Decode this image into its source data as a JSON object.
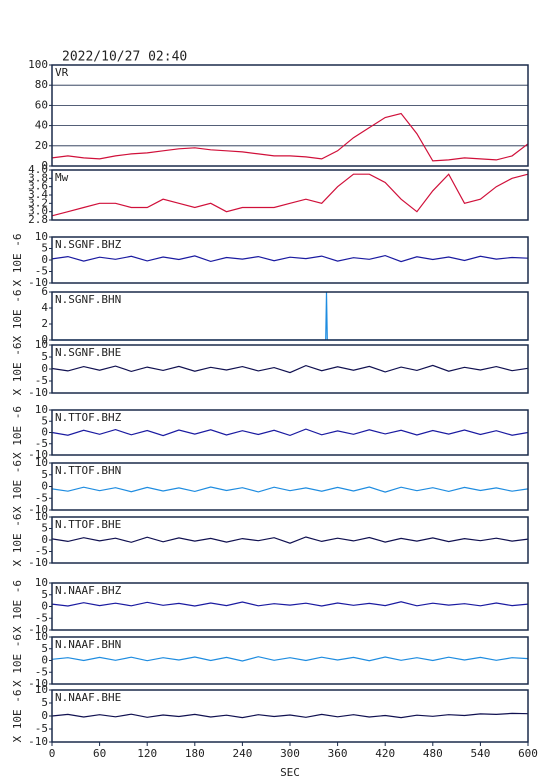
{
  "chart_data": [
    {
      "type": "line",
      "title": "2022/10/27 02:40",
      "label": "VR",
      "color": "#d0103a",
      "grid": true,
      "xlim": [
        0,
        600
      ],
      "ylim": [
        0,
        100
      ],
      "yticks": [
        0,
        20,
        40,
        60,
        80,
        100
      ],
      "x": [
        0,
        20,
        40,
        60,
        80,
        100,
        120,
        140,
        160,
        180,
        200,
        220,
        240,
        260,
        280,
        300,
        320,
        340,
        360,
        380,
        400,
        420,
        440,
        460,
        480,
        500,
        520,
        540,
        560,
        580,
        600
      ],
      "values": [
        8,
        10,
        8,
        7,
        10,
        12,
        13,
        15,
        17,
        18,
        16,
        15,
        14,
        12,
        10,
        10,
        9,
        7,
        15,
        28,
        38,
        48,
        52,
        32,
        5,
        6,
        8,
        7,
        6,
        10,
        22
      ]
    },
    {
      "type": "line",
      "label": "Mw",
      "color": "#d0103a",
      "grid": false,
      "xlim": [
        0,
        600
      ],
      "ylim": [
        2.8,
        4.0
      ],
      "yticks": [
        {
          "value": 2.8,
          "label": "2.8"
        },
        {
          "value": 3.0,
          "label": "3.0"
        },
        {
          "value": 3.2,
          "label": "3.2"
        },
        {
          "value": 3.4,
          "label": "3.4"
        },
        {
          "value": 3.6,
          "label": "3.6"
        },
        {
          "value": 3.8,
          "label": "3.8"
        },
        {
          "value": 4.0,
          "label": "4.0"
        }
      ],
      "x": [
        0,
        20,
        40,
        60,
        80,
        100,
        120,
        140,
        160,
        180,
        200,
        220,
        240,
        260,
        280,
        300,
        320,
        340,
        360,
        380,
        400,
        420,
        440,
        460,
        480,
        500,
        520,
        540,
        560,
        580,
        600
      ],
      "values": [
        2.9,
        3.0,
        3.1,
        3.2,
        3.2,
        3.1,
        3.1,
        3.3,
        3.2,
        3.1,
        3.2,
        3.0,
        3.1,
        3.1,
        3.1,
        3.2,
        3.3,
        3.2,
        3.6,
        3.9,
        3.9,
        3.7,
        3.3,
        3.0,
        3.5,
        3.9,
        3.2,
        3.3,
        3.6,
        3.8,
        3.9
      ]
    },
    {
      "type": "line",
      "label": "N.SGNF.BHZ",
      "ylabel": "X 10E -6",
      "color": "#1a1aa0",
      "grid": false,
      "xlim": [
        0,
        600
      ],
      "ylim": [
        -10,
        10
      ],
      "yticks": [
        -10,
        -5,
        0,
        5,
        10
      ],
      "x": [
        0,
        20,
        40,
        60,
        80,
        100,
        120,
        140,
        160,
        180,
        200,
        220,
        240,
        260,
        280,
        300,
        320,
        340,
        360,
        380,
        400,
        420,
        440,
        460,
        480,
        500,
        520,
        540,
        560,
        580,
        600
      ],
      "values": [
        0.5,
        1.5,
        -0.5,
        1.2,
        0.3,
        1.6,
        -0.4,
        1.3,
        0.2,
        1.8,
        -0.6,
        1.1,
        0.4,
        1.5,
        -0.3,
        1.2,
        0.6,
        1.7,
        -0.5,
        1.0,
        0.3,
        1.9,
        -0.7,
        1.4,
        0.2,
        1.3,
        -0.2,
        1.6,
        0.4,
        1.1,
        0.8
      ]
    },
    {
      "type": "line",
      "label": "N.SGNF.BHN",
      "ylabel": "X 10E -6",
      "color": "#1e8ce0",
      "grid": false,
      "xlim": [
        0,
        600
      ],
      "ylim": [
        0,
        6
      ],
      "yticks": [
        0,
        2,
        4,
        6
      ],
      "x": [
        0,
        345,
        346,
        347,
        348,
        600
      ],
      "values": [
        0,
        0,
        6,
        0,
        0,
        0
      ]
    },
    {
      "type": "line",
      "label": "N.SGNF.BHE",
      "ylabel": "X 10E -6",
      "color": "#101050",
      "grid": false,
      "xlim": [
        0,
        600
      ],
      "ylim": [
        -10,
        10
      ],
      "yticks": [
        -10,
        -5,
        0,
        5,
        10
      ],
      "x": [
        0,
        20,
        40,
        60,
        80,
        100,
        120,
        140,
        160,
        180,
        200,
        220,
        240,
        260,
        280,
        300,
        320,
        340,
        360,
        380,
        400,
        420,
        440,
        460,
        480,
        500,
        520,
        540,
        560,
        580,
        600
      ],
      "values": [
        0.2,
        -0.8,
        1.0,
        -0.5,
        1.2,
        -1.0,
        0.8,
        -0.6,
        1.1,
        -0.9,
        0.7,
        -0.4,
        1.0,
        -0.8,
        0.6,
        -1.5,
        1.4,
        -0.7,
        0.9,
        -0.5,
        1.1,
        -1.2,
        0.8,
        -0.6,
        1.5,
        -0.9,
        0.7,
        -0.4,
        1.0,
        -0.7,
        0.3
      ]
    },
    {
      "type": "line",
      "label": "N.TTOF.BHZ",
      "ylabel": "X 10E -6",
      "color": "#1a1aa0",
      "grid": false,
      "xlim": [
        0,
        600
      ],
      "ylim": [
        -10,
        10
      ],
      "yticks": [
        -10,
        -5,
        0,
        5,
        10
      ],
      "x": [
        0,
        20,
        40,
        60,
        80,
        100,
        120,
        140,
        160,
        180,
        200,
        220,
        240,
        260,
        280,
        300,
        320,
        340,
        360,
        380,
        400,
        420,
        440,
        460,
        480,
        500,
        520,
        540,
        560,
        580,
        600
      ],
      "values": [
        0.0,
        -1.2,
        1.0,
        -0.8,
        1.3,
        -1.0,
        0.9,
        -1.4,
        1.1,
        -0.7,
        1.2,
        -1.1,
        0.8,
        -0.9,
        1.0,
        -1.3,
        1.5,
        -1.0,
        0.7,
        -0.8,
        1.2,
        -0.6,
        1.0,
        -1.1,
        0.9,
        -0.7,
        1.1,
        -0.9,
        0.8,
        -1.2,
        0.0
      ]
    },
    {
      "type": "line",
      "label": "N.TTOF.BHN",
      "ylabel": "X 10E -6",
      "color": "#1e8ce0",
      "grid": false,
      "xlim": [
        0,
        600
      ],
      "ylim": [
        -10,
        10
      ],
      "yticks": [
        -10,
        -5,
        0,
        5,
        10
      ],
      "x": [
        0,
        20,
        40,
        60,
        80,
        100,
        120,
        140,
        160,
        180,
        200,
        220,
        240,
        260,
        280,
        300,
        320,
        340,
        360,
        380,
        400,
        420,
        440,
        460,
        480,
        500,
        520,
        540,
        560,
        580,
        600
      ],
      "values": [
        -1.0,
        -2.0,
        -0.3,
        -1.8,
        -0.5,
        -2.2,
        -0.4,
        -1.9,
        -0.6,
        -2.1,
        -0.2,
        -1.7,
        -0.5,
        -2.3,
        -0.3,
        -1.8,
        -0.6,
        -2.0,
        -0.4,
        -1.9,
        -0.2,
        -2.4,
        -0.3,
        -1.8,
        -0.5,
        -2.1,
        -0.4,
        -1.7,
        -0.6,
        -2.0,
        -1.0
      ]
    },
    {
      "type": "line",
      "label": "N.TTOF.BHE",
      "ylabel": "X 10E -6",
      "color": "#101050",
      "grid": false,
      "xlim": [
        0,
        600
      ],
      "ylim": [
        -10,
        10
      ],
      "yticks": [
        -10,
        -5,
        0,
        5,
        10
      ],
      "x": [
        0,
        20,
        40,
        60,
        80,
        100,
        120,
        140,
        160,
        180,
        200,
        220,
        240,
        260,
        280,
        300,
        320,
        340,
        360,
        380,
        400,
        420,
        440,
        460,
        480,
        500,
        520,
        540,
        560,
        580,
        600
      ],
      "values": [
        0.5,
        -0.6,
        1.0,
        -0.4,
        0.8,
        -1.0,
        1.2,
        -0.8,
        0.9,
        -0.5,
        0.7,
        -0.9,
        0.6,
        -0.3,
        1.0,
        -1.4,
        1.3,
        -0.6,
        0.8,
        -0.4,
        1.1,
        -0.9,
        0.7,
        -0.5,
        0.9,
        -0.7,
        0.6,
        -0.3,
        0.8,
        -0.5,
        0.4
      ]
    },
    {
      "type": "line",
      "label": "N.NAAF.BHZ",
      "ylabel": "X 10E -6",
      "color": "#1a1aa0",
      "grid": false,
      "xlim": [
        0,
        600
      ],
      "ylim": [
        -10,
        10
      ],
      "yticks": [
        -10,
        -5,
        0,
        5,
        10
      ],
      "x": [
        0,
        20,
        40,
        60,
        80,
        100,
        120,
        140,
        160,
        180,
        200,
        220,
        240,
        260,
        280,
        300,
        320,
        340,
        360,
        380,
        400,
        420,
        440,
        460,
        480,
        500,
        520,
        540,
        560,
        580,
        600
      ],
      "values": [
        1.0,
        0.2,
        1.6,
        0.4,
        1.4,
        0.3,
        1.8,
        0.5,
        1.3,
        0.2,
        1.5,
        0.4,
        1.9,
        0.3,
        1.2,
        0.6,
        1.4,
        0.2,
        1.5,
        0.5,
        1.3,
        0.4,
        2.0,
        0.3,
        1.4,
        0.6,
        1.2,
        0.3,
        1.5,
        0.4,
        1.0
      ]
    },
    {
      "type": "line",
      "label": "N.NAAF.BHN",
      "ylabel": "X 10E -6",
      "color": "#1e8ce0",
      "grid": false,
      "xlim": [
        0,
        600
      ],
      "ylim": [
        -10,
        10
      ],
      "yticks": [
        -10,
        -5,
        0,
        5,
        10
      ],
      "x": [
        0,
        20,
        40,
        60,
        80,
        100,
        120,
        140,
        160,
        180,
        200,
        220,
        240,
        260,
        280,
        300,
        320,
        340,
        360,
        380,
        400,
        420,
        440,
        460,
        480,
        500,
        520,
        540,
        560,
        580,
        600
      ],
      "values": [
        0.5,
        1.2,
        0.0,
        1.3,
        0.1,
        1.4,
        -0.1,
        1.2,
        0.2,
        1.5,
        0.0,
        1.3,
        -0.2,
        1.6,
        0.1,
        1.2,
        0.0,
        1.4,
        0.2,
        1.3,
        -0.1,
        1.5,
        0.1,
        1.2,
        0.0,
        1.4,
        0.2,
        1.3,
        0.1,
        1.2,
        0.8
      ]
    },
    {
      "type": "line",
      "label": "N.NAAF.BHE",
      "ylabel": "X 10E -6",
      "xlabel": "SEC",
      "color": "#101050",
      "grid": false,
      "xlim": [
        0,
        600
      ],
      "ylim": [
        -10,
        10
      ],
      "yticks": [
        -10,
        -5,
        0,
        5,
        10
      ],
      "xticks": [
        0,
        60,
        120,
        180,
        240,
        300,
        360,
        420,
        480,
        540,
        600
      ],
      "x": [
        0,
        20,
        40,
        60,
        80,
        100,
        120,
        140,
        160,
        180,
        200,
        220,
        240,
        260,
        280,
        300,
        320,
        340,
        360,
        380,
        400,
        420,
        440,
        460,
        480,
        500,
        520,
        540,
        560,
        580,
        600
      ],
      "values": [
        0.0,
        0.6,
        -0.4,
        0.5,
        -0.3,
        0.7,
        -0.5,
        0.4,
        -0.2,
        0.6,
        -0.4,
        0.3,
        -0.6,
        0.5,
        -0.2,
        0.4,
        -0.5,
        0.6,
        -0.3,
        0.5,
        -0.4,
        0.2,
        -0.6,
        0.3,
        -0.1,
        0.5,
        0.2,
        0.8,
        0.6,
        1.0,
        0.9
      ]
    }
  ]
}
